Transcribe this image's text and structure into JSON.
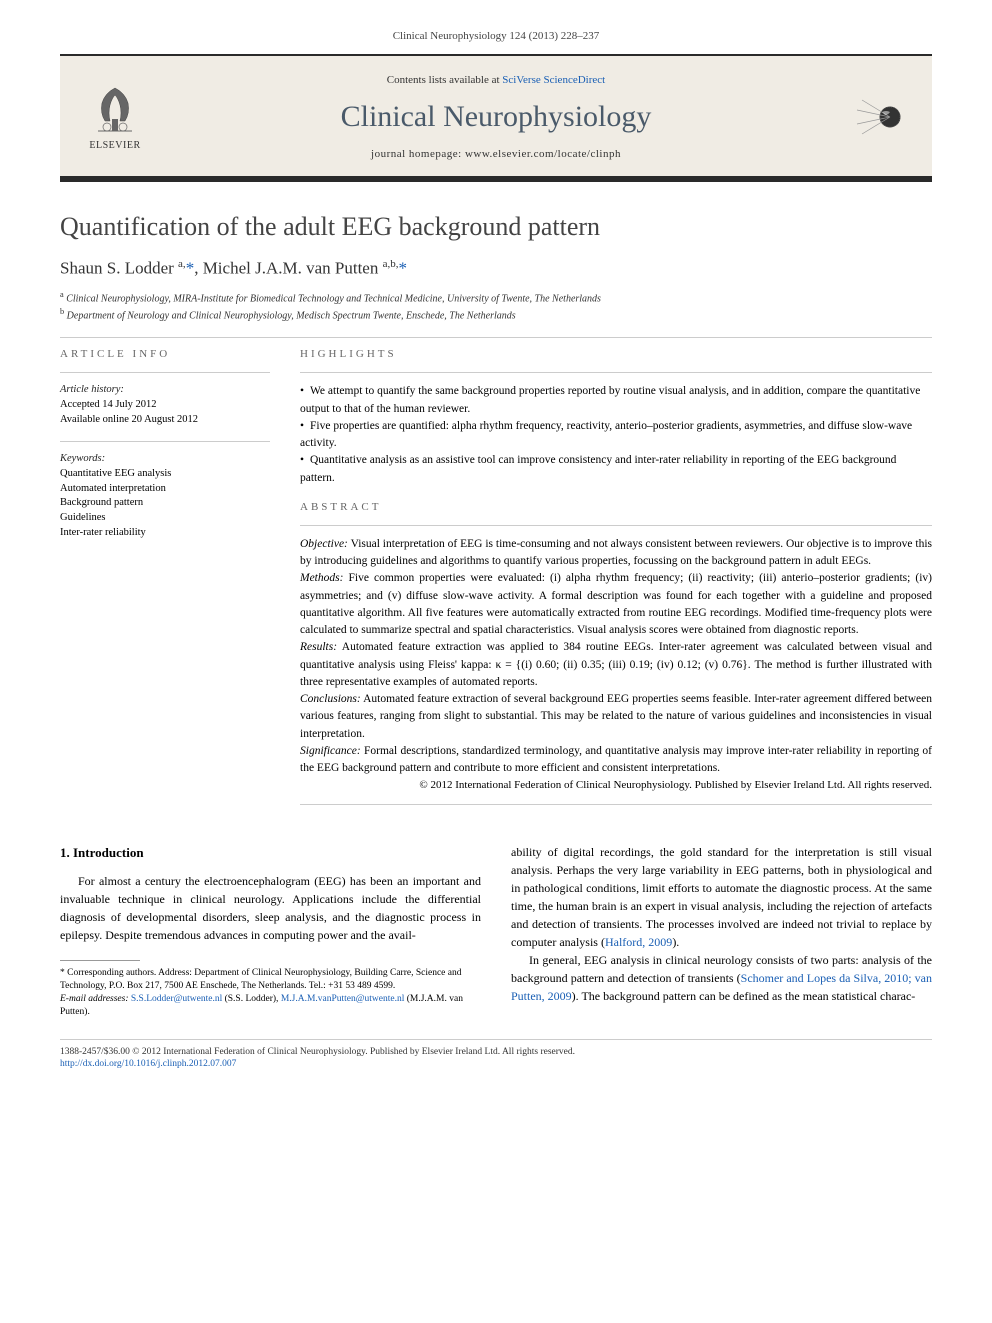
{
  "journal_ref": "Clinical Neurophysiology 124 (2013) 228–237",
  "header": {
    "contents_prefix": "Contents lists available at ",
    "contents_link": "SciVerse ScienceDirect",
    "journal_name": "Clinical Neurophysiology",
    "homepage_prefix": "journal homepage: ",
    "homepage_url": "www.elsevier.com/locate/clinph",
    "elsevier_label": "ELSEVIER"
  },
  "title": "Quantification of the adult EEG background pattern",
  "authors_html": "Shaun S. Lodder <sup>a,</sup><span class=\"author-link\">*</span>, Michel J.A.M. van Putten <sup>a,b,</sup><span class=\"author-link\">*</span>",
  "affiliations": {
    "a": "Clinical Neurophysiology, MIRA-Institute for Biomedical Technology and Technical Medicine, University of Twente, The Netherlands",
    "b": "Department of Neurology and Clinical Neurophysiology, Medisch Spectrum Twente, Enschede, The Netherlands"
  },
  "article_info": {
    "heading": "ARTICLE INFO",
    "history_label": "Article history:",
    "accepted": "Accepted 14 July 2012",
    "online": "Available online 20 August 2012",
    "keywords_label": "Keywords:",
    "keywords": [
      "Quantitative EEG analysis",
      "Automated interpretation",
      "Background pattern",
      "Guidelines",
      "Inter-rater reliability"
    ]
  },
  "highlights": {
    "heading": "HIGHLIGHTS",
    "items": [
      "We attempt to quantify the same background properties reported by routine visual analysis, and in addition, compare the quantitative output to that of the human reviewer.",
      "Five properties are quantified: alpha rhythm frequency, reactivity, anterio–posterior gradients, asymmetries, and diffuse slow-wave activity.",
      "Quantitative analysis as an assistive tool can improve consistency and inter-rater reliability in reporting of the EEG background pattern."
    ]
  },
  "abstract": {
    "heading": "ABSTRACT",
    "objective_label": "Objective:",
    "objective": "Visual interpretation of EEG is time-consuming and not always consistent between reviewers. Our objective is to improve this by introducing guidelines and algorithms to quantify various properties, focussing on the background pattern in adult EEGs.",
    "methods_label": "Methods:",
    "methods": "Five common properties were evaluated: (i) alpha rhythm frequency; (ii) reactivity; (iii) anterio–posterior gradients; (iv) asymmetries; and (v) diffuse slow-wave activity. A formal description was found for each together with a guideline and proposed quantitative algorithm. All five features were automatically extracted from routine EEG recordings. Modified time-frequency plots were calculated to summarize spectral and spatial characteristics. Visual analysis scores were obtained from diagnostic reports.",
    "results_label": "Results:",
    "results": "Automated feature extraction was applied to 384 routine EEGs. Inter-rater agreement was calculated between visual and quantitative analysis using Fleiss' kappa: κ = {(i) 0.60; (ii) 0.35; (iii) 0.19; (iv) 0.12; (v) 0.76}. The method is further illustrated with three representative examples of automated reports.",
    "conclusions_label": "Conclusions:",
    "conclusions": "Automated feature extraction of several background EEG properties seems feasible. Inter-rater agreement differed between various features, ranging from slight to substantial. This may be related to the nature of various guidelines and inconsistencies in visual interpretation.",
    "significance_label": "Significance:",
    "significance": "Formal descriptions, standardized terminology, and quantitative analysis may improve inter-rater reliability in reporting of the EEG background pattern and contribute to more efficient and consistent interpretations.",
    "copyright": "© 2012 International Federation of Clinical Neurophysiology. Published by Elsevier Ireland Ltd. All rights reserved."
  },
  "intro": {
    "heading": "1. Introduction",
    "para1": "For almost a century the electroencephalogram (EEG) has been an important and invaluable technique in clinical neurology. Applications include the differential diagnosis of developmental disorders, sleep analysis, and the diagnostic process in epilepsy. Despite tremendous advances in computing power and the avail-",
    "para2a": "ability of digital recordings, the gold standard for the interpretation is still visual analysis. Perhaps the very large variability in EEG patterns, both in physiological and in pathological conditions, limit efforts to automate the diagnostic process. At the same time, the human brain is an expert in visual analysis, including the rejection of artefacts and detection of transients. The processes involved are indeed not trivial to replace by computer analysis (",
    "para2_cite": "Halford, 2009",
    "para2b": ").",
    "para3a": "In general, EEG analysis in clinical neurology consists of two parts: analysis of the background pattern and detection of transients (",
    "para3_cite": "Schomer and Lopes da Silva, 2010; van Putten, 2009",
    "para3b": "). The background pattern can be defined as the mean statistical charac-"
  },
  "footnotes": {
    "corr": "* Corresponding authors. Address: Department of Clinical Neurophysiology, Building Carre, Science and Technology, P.O. Box 217, 7500 AE Enschede, The Netherlands. Tel.: +31 53 489 4599.",
    "email_label": "E-mail addresses:",
    "email1": "S.S.Lodder@utwente.nl",
    "email1_name": "(S.S. Lodder),",
    "email2": "M.J.A.M.vanPutten@utwente.nl",
    "email2_name": "(M.J.A.M. van Putten)."
  },
  "footer": {
    "line1": "1388-2457/$36.00 © 2012 International Federation of Clinical Neurophysiology. Published by Elsevier Ireland Ltd. All rights reserved.",
    "doi": "http://dx.doi.org/10.1016/j.clinph.2012.07.007"
  },
  "colors": {
    "header_bg": "#f0ece4",
    "bar": "#2a2a2a",
    "link": "#1a5fb4",
    "journal_name": "#4a5a6a"
  }
}
